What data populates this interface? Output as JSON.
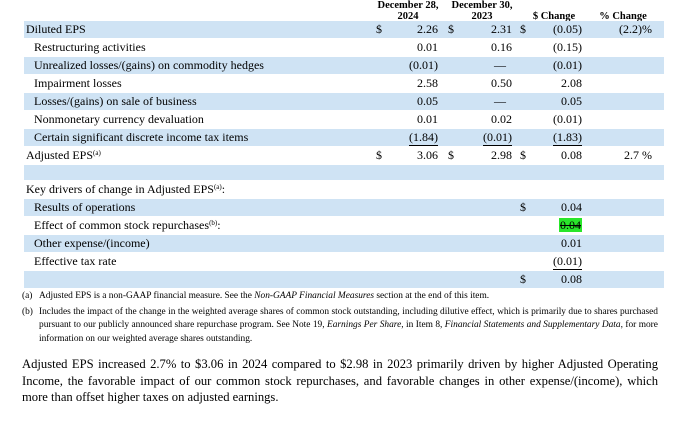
{
  "columns": {
    "col2024": "December 28, 2024",
    "col2024_l1": "December 28,",
    "col2024_l2": "2024",
    "col2023_l1": "December 30,",
    "col2023_l2": "2023",
    "change_dollar": "$ Change",
    "change_pct": "% Change"
  },
  "rows": [
    {
      "label": "Diluted EPS",
      "d1": "$",
      "v2024": "2.26",
      "d2": "$",
      "v2023": "2.31",
      "d3": "$",
      "chg": "(0.05)",
      "pct": "(2.2)%"
    },
    {
      "label": "Restructuring activities",
      "v2024": "0.01",
      "v2023": "0.16",
      "chg": "(0.15)"
    },
    {
      "label": "Unrealized losses/(gains) on commodity hedges",
      "v2024": "(0.01)",
      "v2023": "—",
      "chg": "(0.01)"
    },
    {
      "label": "Impairment losses",
      "v2024": "2.58",
      "v2023": "0.50",
      "chg": "2.08"
    },
    {
      "label": "Losses/(gains) on sale of business",
      "v2024": "0.05",
      "v2023": "—",
      "chg": "0.05"
    },
    {
      "label": "Nonmonetary currency devaluation",
      "v2024": "0.01",
      "v2023": "0.02",
      "chg": "(0.01)"
    },
    {
      "label": "Certain significant discrete income tax items",
      "v2024": "(1.84)",
      "v2023": "(0.01)",
      "chg": "(1.83)"
    },
    {
      "label": "Adjusted EPS",
      "sup": "(a)",
      "d1": "$",
      "v2024": "3.06",
      "d2": "$",
      "v2023": "2.98",
      "d3": "$",
      "chg": "0.08",
      "pct": "2.7 %"
    }
  ],
  "drivers": {
    "heading": "Key drivers of change in Adjusted EPS",
    "heading_sup": "(a)",
    "heading_suffix": ":",
    "items": [
      {
        "label": "Results of operations",
        "dollar": "$",
        "value": "0.04"
      },
      {
        "label": "Effect of common stock repurchases",
        "sup": "(b)",
        "suffix": ":",
        "value": "0.04"
      },
      {
        "label": "Other expense/(income)",
        "value": "0.01"
      },
      {
        "label": "Effective tax rate",
        "value": "(0.01)"
      }
    ],
    "total_dollar": "$",
    "total": "0.08"
  },
  "footnotes": {
    "a_marker": "(a)",
    "a_text1": "Adjusted EPS is a non-GAAP financial measure. See the ",
    "a_em": "Non-GAAP Financial Measures",
    "a_text2": " section at the end of this item.",
    "b_marker": "(b)",
    "b_text1": "Includes the impact of the change in the weighted average shares of common stock outstanding, including dilutive effect, which is primarily due to shares purchased pursuant to our publicly announced share repurchase program. See Note 19, ",
    "b_em1": "Earnings Per Share",
    "b_text2": ", in Item 8, ",
    "b_em2": "Financial Statements and Supplementary Data",
    "b_text3": ", for more information on our weighted average shares outstanding."
  },
  "paragraph": "Adjusted EPS increased 2.7% to $3.06 in 2024 compared to $2.98 in 2023 primarily driven by higher Adjusted Operating Income, the favorable impact of our common stock repurchases, and favorable changes in other expense/(income), which more than offset higher taxes on adjusted earnings.",
  "colors": {
    "row_shade": "#cfe3f4",
    "highlight": "#29e62a"
  }
}
